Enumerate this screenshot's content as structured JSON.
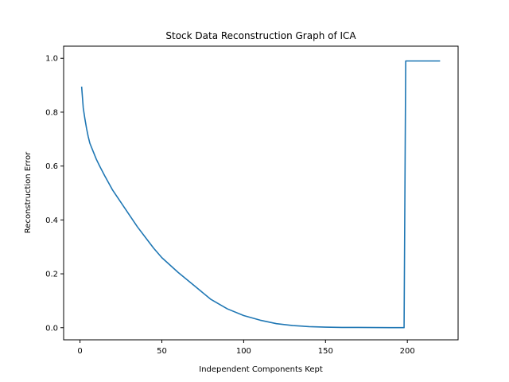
{
  "chart_data": {
    "type": "line",
    "title": "Stock Data Reconstruction Graph of ICA",
    "xlabel": "Independent Components Kept",
    "ylabel": "Reconstruction Error",
    "xlim": [
      -10,
      231
    ],
    "ylim": [
      -0.045,
      1.045
    ],
    "xticks": [
      0,
      50,
      100,
      150,
      200
    ],
    "yticks": [
      0.0,
      0.2,
      0.4,
      0.6,
      0.8,
      1.0
    ],
    "xtick_labels": [
      "0",
      "50",
      "100",
      "150",
      "200"
    ],
    "ytick_labels": [
      "0.0",
      "0.2",
      "0.4",
      "0.6",
      "0.8",
      "1.0"
    ],
    "grid": false,
    "series": [
      {
        "color": "#1f77b4",
        "x": [
          1,
          2,
          3,
          4,
          5,
          6,
          8,
          10,
          12,
          15,
          20,
          25,
          30,
          35,
          40,
          45,
          50,
          60,
          70,
          80,
          90,
          100,
          110,
          120,
          130,
          140,
          150,
          160,
          170,
          180,
          190,
          198,
          199,
          200,
          210,
          220
        ],
        "y": [
          0.895,
          0.815,
          0.775,
          0.74,
          0.71,
          0.685,
          0.655,
          0.625,
          0.6,
          0.565,
          0.51,
          0.465,
          0.42,
          0.375,
          0.335,
          0.295,
          0.26,
          0.205,
          0.155,
          0.105,
          0.07,
          0.045,
          0.028,
          0.015,
          0.008,
          0.004,
          0.002,
          0.001,
          0.001,
          0.0005,
          0.0002,
          0.0001,
          0.99,
          0.99,
          0.99,
          0.99
        ]
      }
    ]
  }
}
